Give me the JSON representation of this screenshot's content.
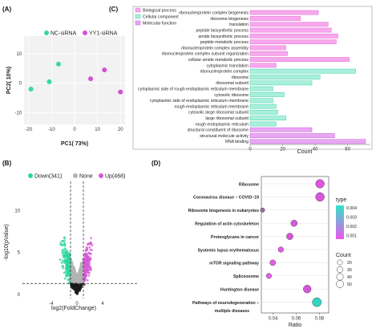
{
  "chart_data": [
    {
      "panel": "(A)",
      "type": "scatter",
      "xlabel": "PC1( 73%)",
      "ylabel": "PC2( 10%)",
      "xticks": [
        -20,
        -10,
        0,
        10,
        20
      ],
      "yticks": [
        -10,
        0,
        10
      ],
      "xlim": [
        -22,
        22
      ],
      "ylim": [
        -14,
        16
      ],
      "legend_position": "top",
      "series": [
        {
          "name": "NC-siRNA",
          "color": "#3ad6a6",
          "points": [
            {
              "x": -19,
              "y": -2
            },
            {
              "x": -7,
              "y": 6.5
            },
            {
              "x": -11,
              "y": 0.5
            }
          ]
        },
        {
          "name": "YY1-siRNA",
          "color": "#d64fd6",
          "points": [
            {
              "x": 7,
              "y": 1.5
            },
            {
              "x": 13,
              "y": 4.5
            },
            {
              "x": 20,
              "y": -3
            }
          ]
        }
      ]
    },
    {
      "panel": "(B)",
      "type": "scatter",
      "xlabel": "log2(FoldChange)",
      "ylabel": "-log10(pValue)",
      "xticks": [
        -4,
        0,
        4
      ],
      "yticks": [
        0,
        5,
        10
      ],
      "xlim": [
        -8.5,
        9.5
      ],
      "ylim": [
        -0.5,
        13.5
      ],
      "fold_change_threshold": 1,
      "pvalue_threshold": 1.3,
      "legend_position": "top",
      "series": [
        {
          "name": "Down",
          "count": "341",
          "color": "#2fd5a0"
        },
        {
          "name": "None",
          "color": "#b3b3b3"
        },
        {
          "name": "Up",
          "count": "468",
          "color": "#d659d6"
        }
      ]
    },
    {
      "panel": "(C)",
      "type": "bar",
      "orientation": "horizontal",
      "xlabel": "Count",
      "xticks": [
        0,
        20,
        40,
        60
      ],
      "xlim": [
        0,
        74
      ],
      "legend_position": "top-left",
      "groups": [
        {
          "name": "Biological process",
          "color": "#f7a8ec",
          "border": "#e070d6"
        },
        {
          "name": "Cellular component",
          "color": "#a8f0dc",
          "border": "#46cfa8"
        },
        {
          "name": "Molecular function",
          "color": "#e8a8f2",
          "border": "#c461d8"
        }
      ],
      "categories": [
        "ribonucleoprotein complex biogenesis",
        "ribosome biogenesis",
        "translation",
        "peptide biosynthetic process",
        "amide biosynthetic process",
        "peptide metabolic process",
        "ribonucleoprotein complex assembly",
        "ribonucleoprotein complex subunit organization",
        "cellular amide metabolic process",
        "cytoplasmic translation",
        "ribonucleoprotein complex",
        "ribosome",
        "ribosomal subunit",
        "cytoplasmic side of rough endoplasmic reticulum membrane",
        "cytosolic ribosome",
        "cytoplasmic side of endoplasmic reticulum membrane",
        "rough endoplasmic reticulum membrane",
        "cytosolic large ribosomal subunit",
        "large ribosomal subunit",
        "rough endoplasmic reticulum",
        "structural constituent of ribosome",
        "structural molecule activity",
        "RNA binding"
      ],
      "values": [
        42,
        31,
        48,
        50,
        54,
        53,
        22,
        23,
        61,
        16,
        65,
        43,
        38,
        14,
        21,
        14,
        16,
        17,
        22,
        16,
        38,
        52,
        71
      ],
      "group_index": [
        0,
        0,
        0,
        0,
        0,
        0,
        0,
        0,
        0,
        0,
        1,
        1,
        1,
        1,
        1,
        1,
        1,
        1,
        1,
        1,
        2,
        2,
        2
      ]
    },
    {
      "panel": "(D)",
      "type": "scatter",
      "xlabel": "Ratio",
      "xticks": [
        0.04,
        0.06,
        0.08
      ],
      "xlim": [
        0.03,
        0.088
      ],
      "color_legend_title": "type",
      "color_legend_ticks": [
        "0.004",
        "0.003",
        "0.002",
        "0.001"
      ],
      "size_legend_title": "Count",
      "size_legend_values": [
        "20",
        "30",
        "40",
        "50"
      ],
      "color_high": "#ee55ee",
      "color_low": "#2ee5c8",
      "categories": [
        "Ribosome",
        "Coronavirus disease – COVID−19",
        "Ribosome biogenesis in eukaryotes",
        "Regulation of actin cytoskeleton",
        "Proteoglycans in cancer",
        "Systemic lupus erythematosus",
        "mTOR signaling pathway",
        "Spliceosome",
        "Huntington disease",
        "Pathways of neurodegeneration –\nmultiple diseases"
      ],
      "points": [
        {
          "x": 0.0805,
          "count": 50,
          "color": "#e055e0"
        },
        {
          "x": 0.0805,
          "count": 52,
          "color": "#d858dd"
        },
        {
          "x": 0.031,
          "count": 8,
          "color": "#9a6aaa"
        },
        {
          "x": 0.0582,
          "count": 24,
          "color": "#d45ad8"
        },
        {
          "x": 0.0545,
          "count": 25,
          "color": "#d852dc"
        },
        {
          "x": 0.0468,
          "count": 15,
          "color": "#e45ae4"
        },
        {
          "x": 0.0398,
          "count": 18,
          "color": "#e060e0"
        },
        {
          "x": 0.0365,
          "count": 14,
          "color": "#e45ee4"
        },
        {
          "x": 0.0695,
          "count": 40,
          "color": "#d255d8"
        },
        {
          "x": 0.0778,
          "count": 55,
          "color": "#36d4c4"
        }
      ]
    }
  ]
}
